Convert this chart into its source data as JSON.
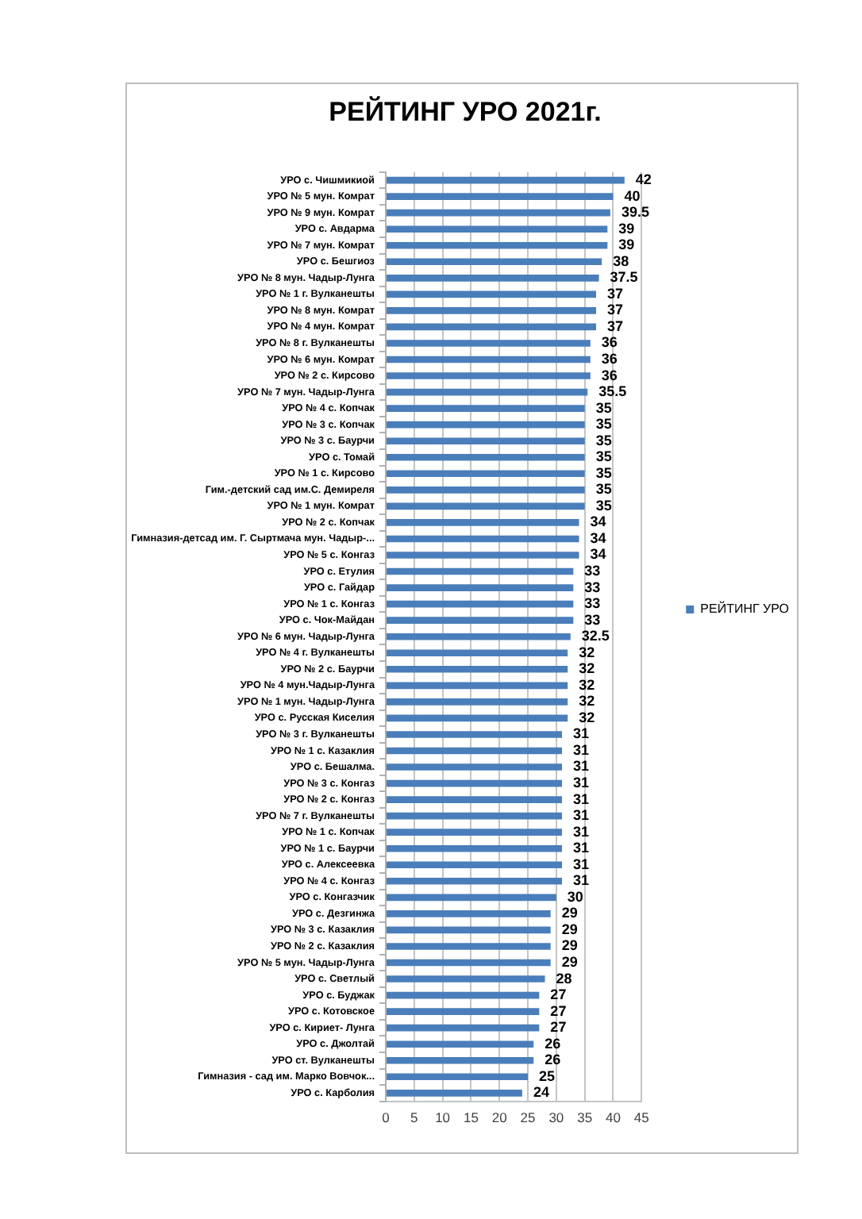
{
  "chart_data": {
    "type": "bar",
    "orientation": "horizontal",
    "title": "РЕЙТИНГ УРО 2021г.",
    "categories": [
      "УРО с. Чишмикиой",
      "УРО № 5 мун. Комрат",
      "УРО № 9 мун. Комрат",
      "УРО с. Авдарма",
      "УРО № 7 мун. Комрат",
      "УРО с. Бешгиоз",
      "УРО № 8 мун. Чадыр-Лунга",
      "УРО № 1 г. Вулканешты",
      "УРО № 8 мун. Комрат",
      "УРО № 4 мун. Комрат",
      "УРО № 8 г. Вулканешты",
      "УРО № 6 мун. Комрат",
      "УРО № 2 с. Кирсово",
      "УРО № 7 мун. Чадыр-Лунга",
      "УРО № 4 с. Копчак",
      "УРО № 3 с. Копчак",
      "УРО № 3 с. Баурчи",
      "УРО с. Томай",
      "УРО № 1 с. Кирсово",
      "Гим.-детский сад им.С. Демиреля",
      "УРО № 1 мун. Комрат",
      "УРО № 2 с. Копчак",
      "Гимназия-детсад им. Г. Сыртмача мун. Чадыр-...",
      "УРО № 5 с. Конгаз",
      "УРО с. Етулия",
      "УРО с. Гайдар",
      "УРО № 1 с. Конгаз",
      "УРО с. Чок-Майдан",
      "УРО № 6 мун. Чадыр-Лунга",
      "УРО № 4 г. Вулканешты",
      "УРО № 2 с. Баурчи",
      "УРО № 4 мун.Чадыр-Лунга",
      "УРО № 1 мун. Чадыр-Лунга",
      "УРО с. Русская Киселия",
      "УРО № 3 г. Вулканешты",
      "УРО № 1 с. Казаклия",
      "УРО с. Бешалма.",
      "УРО № 3 с. Конгаз",
      "УРО № 2 с. Конгаз",
      "УРО № 7 г. Вулканешты",
      "УРО № 1 с. Копчак",
      "УРО № 1 с. Баурчи",
      "УРО с. Алексеевка",
      "УРО № 4 с. Конгаз",
      "УРО с. Конгазчик",
      "УРО с. Дезгинжа",
      "УРО № 3 с. Казаклия",
      "УРО № 2 с. Казаклия",
      "УРО № 5 мун. Чадыр-Лунга",
      "УРО с. Светлый",
      "УРО с. Буджак",
      "УРО с. Котовское",
      "УРО с. Кириет- Лунга",
      "УРО с. Джолтай",
      "УРО ст. Вулканешты",
      "Гимназия - сад им. Марко Вовчок...",
      "УРО с. Карболия"
    ],
    "series": [
      {
        "name": "РЕЙТИНГ УРО",
        "color": "#4a7ebb",
        "values": [
          42,
          40,
          39.5,
          39,
          39,
          38,
          37.5,
          37,
          37,
          37,
          36,
          36,
          36,
          35.5,
          35,
          35,
          35,
          35,
          35,
          35,
          35,
          34,
          34,
          34,
          33,
          33,
          33,
          33,
          32.5,
          32,
          32,
          32,
          32,
          32,
          31,
          31,
          31,
          31,
          31,
          31,
          31,
          31,
          31,
          31,
          30,
          29,
          29,
          29,
          29,
          28,
          27,
          27,
          27,
          26,
          26,
          25,
          24
        ]
      }
    ],
    "xlim": [
      0,
      45
    ],
    "xticks": [
      0,
      5,
      10,
      15,
      20,
      25,
      30,
      35,
      40,
      45
    ],
    "grid": "x",
    "legend": "right",
    "data_labels": true
  }
}
